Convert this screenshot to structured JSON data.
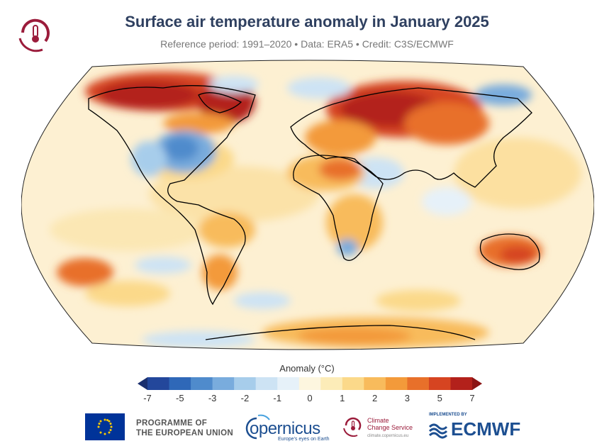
{
  "header": {
    "title": "Surface air temperature anomaly in January 2025",
    "subtitle": "Reference period: 1991–2020 • Data: ERA5 • Credit: C3S/ECMWF"
  },
  "map": {
    "projection": "Robinson",
    "background_color": "#fdf0d2",
    "regions": [
      {
        "name": "arctic-canada",
        "anomaly_level": "+5 to +7"
      },
      {
        "name": "eastern-north-america",
        "anomaly_level": "-3 to -2"
      },
      {
        "name": "siberia-central-asia",
        "anomaly_level": "+5 to +7"
      },
      {
        "name": "scandinavia-northeast-russia",
        "anomaly_level": "-3 to -1"
      },
      {
        "name": "middle-east",
        "anomaly_level": "-1 to 0"
      },
      {
        "name": "north-africa-sahara",
        "anomaly_level": "+2 to +3"
      },
      {
        "name": "southern-africa",
        "anomaly_level": "-2 to -1"
      },
      {
        "name": "australia",
        "anomaly_level": "+2 to +4"
      },
      {
        "name": "antarctica-east",
        "anomaly_level": "+2 to +3"
      },
      {
        "name": "south-pacific",
        "anomaly_level": "+2 to +4"
      }
    ]
  },
  "colorbar": {
    "label": "Anomaly (°C)",
    "tick_labels": [
      "-7",
      "-5",
      "-3",
      "-2",
      "-1",
      "0",
      "1",
      "2",
      "3",
      "5",
      "7"
    ],
    "colors": [
      "#1a2f6e",
      "#23479b",
      "#2f68b8",
      "#4f8bcc",
      "#79acdd",
      "#a7cdeb",
      "#cde3f4",
      "#e6f1f9",
      "#fdf6df",
      "#fcecb8",
      "#fbd98a",
      "#f8bb5c",
      "#f39a3a",
      "#e8702a",
      "#d64421",
      "#b3211b",
      "#8b1414"
    ]
  },
  "footer": {
    "eu_text_line1": "PROGRAMME OF",
    "eu_text_line2": "THE EUROPEAN UNION",
    "copernicus": "opernicus",
    "copernicus_sub": "Europe's eyes on Earth",
    "c3s_line1": "Climate",
    "c3s_line2": "Change Service",
    "c3s_url": "climate.copernicus.eu",
    "ecmwf_implemented": "IMPLEMENTED BY",
    "ecmwf": "ECMWF"
  }
}
